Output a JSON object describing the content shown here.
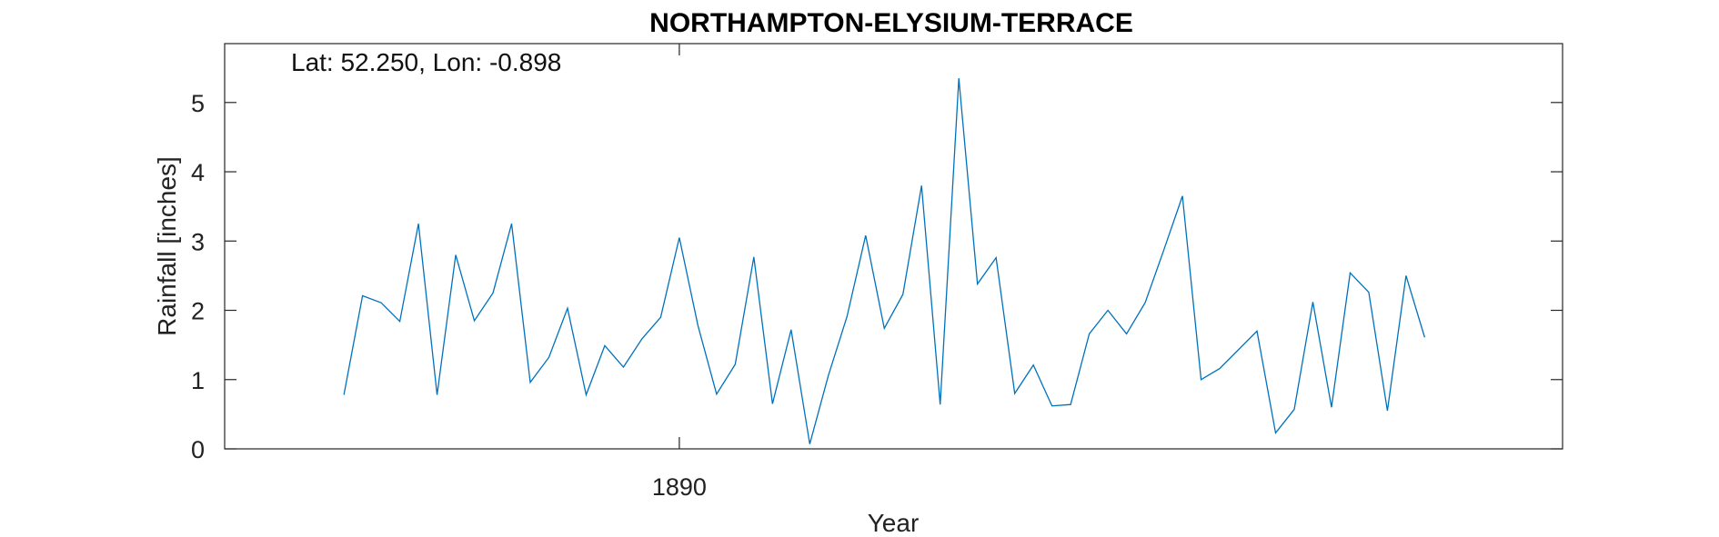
{
  "chart_data": {
    "type": "line",
    "title": "NORTHAMPTON-ELYSIUM-TERRACE",
    "annotation": "Lat: 52.250, Lon: -0.898",
    "xlabel": "Year",
    "ylabel": "Rainfall [inches]",
    "xlim": [
      1865.6,
      1937.4
    ],
    "ylim": [
      0,
      5.85
    ],
    "xticks": [
      1890
    ],
    "yticks": [
      0,
      1,
      2,
      3,
      4,
      5
    ],
    "grid": false,
    "line_color": "#0072BD",
    "series": [
      {
        "x": [
          1872,
          1873,
          1874,
          1875,
          1876,
          1877,
          1878,
          1879,
          1880,
          1881,
          1882,
          1883,
          1884,
          1885,
          1886,
          1887,
          1888,
          1889,
          1890,
          1891,
          1892,
          1893,
          1894,
          1895,
          1896,
          1897,
          1898,
          1899,
          1900,
          1901,
          1902,
          1903,
          1904,
          1905,
          1906,
          1907,
          1908,
          1909,
          1910,
          1911,
          1912,
          1913,
          1914,
          1915,
          1916,
          1917,
          1918,
          1919,
          1920,
          1921,
          1922,
          1923,
          1924,
          1925,
          1926,
          1927,
          1928,
          1929,
          1930
        ],
        "y": [
          0.78,
          2.21,
          2.11,
          1.84,
          3.25,
          0.78,
          2.8,
          1.85,
          2.25,
          3.25,
          0.96,
          1.32,
          2.03,
          0.78,
          1.49,
          1.18,
          1.59,
          1.9,
          3.05,
          1.78,
          0.79,
          1.22,
          2.77,
          0.65,
          1.72,
          0.07,
          1.06,
          1.91,
          3.08,
          1.74,
          2.23,
          3.8,
          0.64,
          5.35,
          2.38,
          2.76,
          0.8,
          1.21,
          0.62,
          0.64,
          1.66,
          2.0,
          1.66,
          2.11,
          2.87,
          3.65,
          1.0,
          1.16,
          1.43,
          1.7,
          0.23,
          0.57,
          2.12,
          0.6,
          2.54,
          2.26,
          0.55,
          2.5,
          1.61
        ]
      }
    ]
  }
}
